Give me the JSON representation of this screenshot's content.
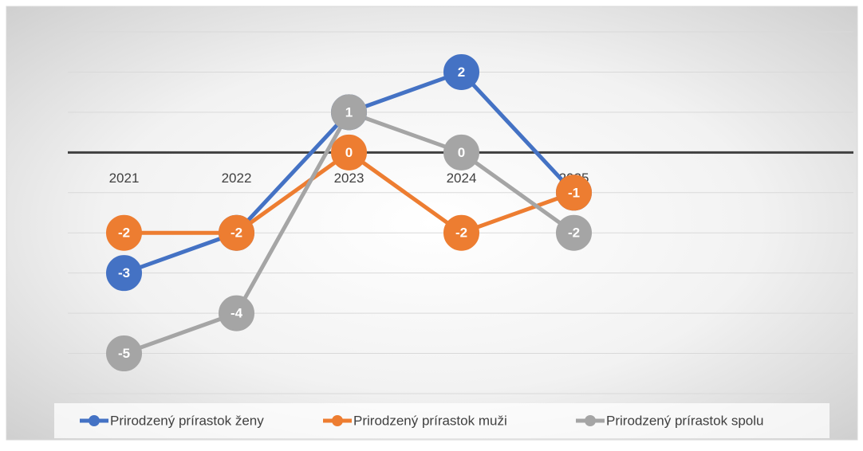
{
  "chart_data": {
    "type": "line",
    "categories": [
      "2021",
      "2022",
      "2023",
      "2024",
      "2025"
    ],
    "series": [
      {
        "name": "Prirodzený prírastok ženy",
        "color": "#4472c4",
        "values": [
          -3,
          -2,
          1,
          2,
          -1
        ]
      },
      {
        "name": "Prirodzený prírastok muži",
        "color": "#ed7d31",
        "values": [
          -2,
          -2,
          0,
          -2,
          -1
        ]
      },
      {
        "name": "Prirodzený prírastok spolu",
        "color": "#a5a5a5",
        "values": [
          -5,
          -4,
          1,
          0,
          -2
        ]
      }
    ],
    "ylim": [
      -6,
      3
    ],
    "yticks": [
      -6,
      -5,
      -4,
      -3,
      -2,
      -1,
      0,
      1,
      2,
      3
    ],
    "grid": true,
    "legend": "bottom"
  }
}
